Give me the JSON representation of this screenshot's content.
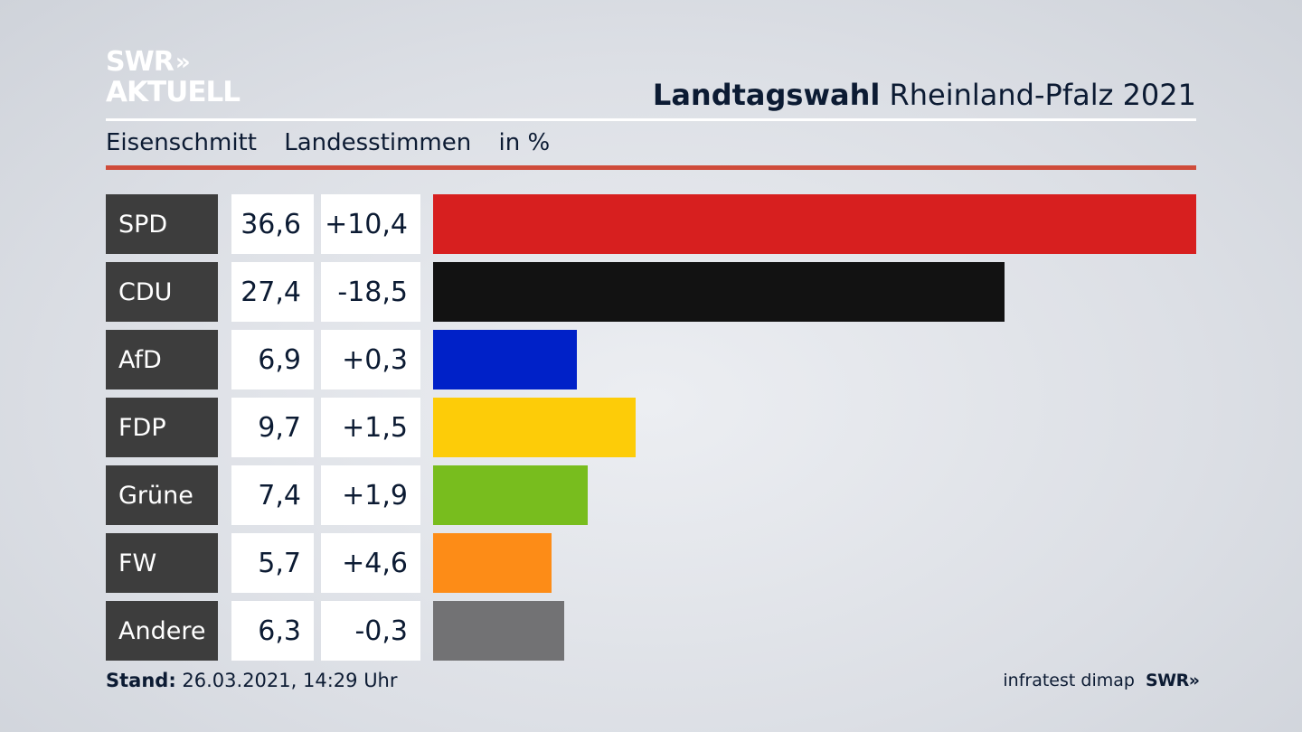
{
  "logo": {
    "line1": "SWR",
    "chevrons": "»",
    "line2": "AKTUELL"
  },
  "title": {
    "bold": "Landtagswahl",
    "rest": "Rheinland-Pfalz 2021"
  },
  "subtitle": {
    "place": "Eisenschmitt",
    "metric": "Landesstimmen",
    "unit": "in %"
  },
  "colors": {
    "accent_rule": "#cf4b3a",
    "label_bg": "#3d3d3d"
  },
  "chart_data": {
    "type": "bar",
    "orientation": "horizontal",
    "categories": [
      "SPD",
      "CDU",
      "AfD",
      "FDP",
      "Grüne",
      "FW",
      "Andere"
    ],
    "values": [
      36.6,
      27.4,
      6.9,
      9.7,
      7.4,
      5.7,
      6.3
    ],
    "value_labels": [
      "36,6",
      "27,4",
      "6,9",
      "9,7",
      "7,4",
      "5,7",
      "6,3"
    ],
    "diff_labels": [
      "+10,4",
      "-18,5",
      "+0,3",
      "+1,5",
      "+1,9",
      "+4,6",
      "-0,3"
    ],
    "diffs": [
      10.4,
      -18.5,
      0.3,
      1.5,
      1.9,
      4.6,
      -0.3
    ],
    "colors": [
      "#d71f1f",
      "#121212",
      "#0021c8",
      "#fdcc08",
      "#78bd1e",
      "#fd8c17",
      "#727274"
    ],
    "xlim": [
      0,
      36.6
    ]
  },
  "footer": {
    "stand_label": "Stand:",
    "stand_value": "26.03.2021, 14:29 Uhr",
    "source": "infratest dimap",
    "brand": "SWR",
    "brand_chevrons": "»"
  }
}
